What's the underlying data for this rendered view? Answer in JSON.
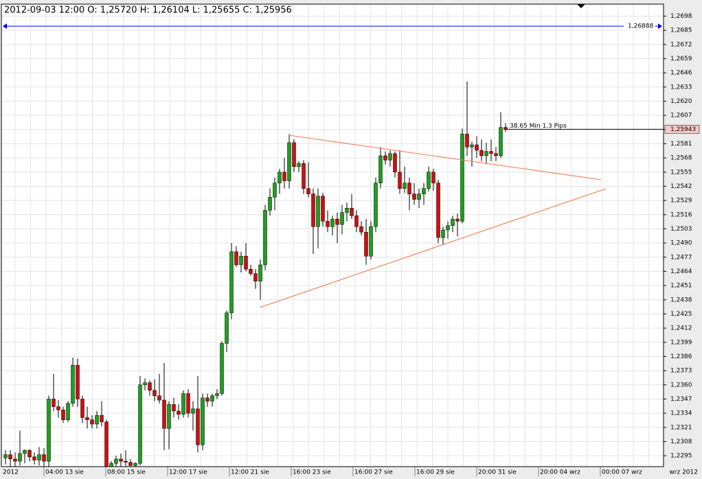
{
  "chart_data": {
    "type": "candlestick",
    "title": "2012-09-03 12:00 O: 1,25720 H: 1,26104 L: 1,25655 C: 1,25956",
    "up_color": "#1f9e1f",
    "down_color": "#cc1010",
    "ylim": [
      1.2285,
      1.2709
    ],
    "yticks": [
      {
        "value": 1.2295,
        "label": "1,2295"
      },
      {
        "value": 1.2308,
        "label": "1,2308"
      },
      {
        "value": 1.2321,
        "label": "1,2321"
      },
      {
        "value": 1.2334,
        "label": "1,2334"
      },
      {
        "value": 1.2347,
        "label": "1,2347"
      },
      {
        "value": 1.236,
        "label": "1,2360"
      },
      {
        "value": 1.2373,
        "label": "1,2373"
      },
      {
        "value": 1.2386,
        "label": "1,2386"
      },
      {
        "value": 1.2399,
        "label": "1,2399"
      },
      {
        "value": 1.2412,
        "label": "1,2412"
      },
      {
        "value": 1.2425,
        "label": "1,2425"
      },
      {
        "value": 1.2438,
        "label": "1,2438"
      },
      {
        "value": 1.2451,
        "label": "1,2451"
      },
      {
        "value": 1.2464,
        "label": "1,2464"
      },
      {
        "value": 1.2477,
        "label": "1,2477"
      },
      {
        "value": 1.249,
        "label": "1,2490"
      },
      {
        "value": 1.2503,
        "label": "1,2503"
      },
      {
        "value": 1.2516,
        "label": "1,2516"
      },
      {
        "value": 1.2529,
        "label": "1,2529"
      },
      {
        "value": 1.2542,
        "label": "1,2542"
      },
      {
        "value": 1.2555,
        "label": "1,2555"
      },
      {
        "value": 1.2568,
        "label": "1,2568"
      },
      {
        "value": 1.2581,
        "label": "1,2581"
      },
      {
        "value": 1.2594,
        "label": "1,2594"
      },
      {
        "value": 1.2607,
        "label": "1,2607"
      },
      {
        "value": 1.262,
        "label": "1,2620"
      },
      {
        "value": 1.2633,
        "label": "1,2633"
      },
      {
        "value": 1.2646,
        "label": "1,2646"
      },
      {
        "value": 1.2659,
        "label": "1,2659"
      },
      {
        "value": 1.2672,
        "label": "1,2672"
      },
      {
        "value": 1.2685,
        "label": "1,2685"
      },
      {
        "value": 1.2698,
        "label": "1,2698"
      }
    ],
    "grid": true,
    "x_start_label": "2012",
    "x_end_label": "wrz 2012",
    "x_labels": [
      "04:00 13 sie",
      "08:00 15 sie",
      "12:00 17 sie",
      "12:00 21 sie",
      "16:00 23 sie",
      "16:00 27 sie",
      "16:00 29 sie",
      "20:00 31 sie",
      "20:00 04 wrz",
      "00:00 07 wrz"
    ],
    "candles": [
      [
        1.2293,
        1.23,
        1.2287,
        1.2296
      ],
      [
        1.2296,
        1.23,
        1.2285,
        1.2292
      ],
      [
        1.2292,
        1.2298,
        1.2285,
        1.229
      ],
      [
        1.229,
        1.2318,
        1.2286,
        1.2297
      ],
      [
        1.2297,
        1.2301,
        1.2288,
        1.23
      ],
      [
        1.23,
        1.2301,
        1.229,
        1.2294
      ],
      [
        1.2294,
        1.2298,
        1.2287,
        1.2291
      ],
      [
        1.2291,
        1.2303,
        1.2286,
        1.2296
      ],
      [
        1.2296,
        1.2302,
        1.2285,
        1.229
      ],
      [
        1.229,
        1.235,
        1.2285,
        1.2347
      ],
      [
        1.2347,
        1.237,
        1.2336,
        1.234
      ],
      [
        1.234,
        1.2346,
        1.233,
        1.2337
      ],
      [
        1.2337,
        1.234,
        1.2325,
        1.2328
      ],
      [
        1.2328,
        1.2345,
        1.2326,
        1.2343
      ],
      [
        1.2343,
        1.2385,
        1.234,
        1.2378
      ],
      [
        1.2378,
        1.2384,
        1.234,
        1.2347
      ],
      [
        1.2347,
        1.235,
        1.2325,
        1.233
      ],
      [
        1.233,
        1.234,
        1.232,
        1.2328
      ],
      [
        1.2328,
        1.2332,
        1.232,
        1.2324
      ],
      [
        1.2324,
        1.2336,
        1.232,
        1.2332
      ],
      [
        1.2332,
        1.2345,
        1.2322,
        1.2326
      ],
      [
        1.2326,
        1.2328,
        1.228,
        1.2285
      ],
      [
        1.2285,
        1.229,
        1.228,
        1.2288
      ],
      [
        1.2288,
        1.2295,
        1.2282,
        1.2292
      ],
      [
        1.2292,
        1.2297,
        1.2285,
        1.229
      ],
      [
        1.229,
        1.23,
        1.2285,
        1.2289
      ],
      [
        1.2289,
        1.2292,
        1.2283,
        1.2286
      ],
      [
        1.2286,
        1.2289,
        1.2284,
        1.2288
      ],
      [
        1.2288,
        1.2368,
        1.2286,
        1.236
      ],
      [
        1.236,
        1.2366,
        1.2355,
        1.2362
      ],
      [
        1.2362,
        1.2364,
        1.235,
        1.2355
      ],
      [
        1.2355,
        1.2365,
        1.2345,
        1.235
      ],
      [
        1.235,
        1.237,
        1.2343,
        1.2346
      ],
      [
        1.2346,
        1.238,
        1.23,
        1.232
      ],
      [
        1.232,
        1.2345,
        1.2301,
        1.2342
      ],
      [
        1.2342,
        1.2348,
        1.233,
        1.2336
      ],
      [
        1.2336,
        1.2342,
        1.2328,
        1.2333
      ],
      [
        1.2333,
        1.2355,
        1.233,
        1.2352
      ],
      [
        1.2352,
        1.2356,
        1.233,
        1.2334
      ],
      [
        1.2334,
        1.2345,
        1.2318,
        1.2338
      ],
      [
        1.2338,
        1.2368,
        1.2298,
        1.2305
      ],
      [
        1.2305,
        1.2352,
        1.23,
        1.2348
      ],
      [
        1.2348,
        1.2352,
        1.234,
        1.2345
      ],
      [
        1.2345,
        1.2352,
        1.234,
        1.235
      ],
      [
        1.235,
        1.2356,
        1.2347,
        1.2352
      ],
      [
        1.2352,
        1.24,
        1.235,
        1.2398
      ],
      [
        1.2398,
        1.2428,
        1.239,
        1.2426
      ],
      [
        1.2426,
        1.249,
        1.242,
        1.2482
      ],
      [
        1.2482,
        1.2487,
        1.2468,
        1.247
      ],
      [
        1.247,
        1.2482,
        1.2463,
        1.2478
      ],
      [
        1.2478,
        1.249,
        1.2464,
        1.2466
      ],
      [
        1.2466,
        1.247,
        1.246,
        1.2462
      ],
      [
        1.2462,
        1.2466,
        1.2448,
        1.2455
      ],
      [
        1.2455,
        1.2475,
        1.2438,
        1.247
      ],
      [
        1.247,
        1.2525,
        1.2465,
        1.252
      ],
      [
        1.252,
        1.254,
        1.2515,
        1.2532
      ],
      [
        1.2532,
        1.255,
        1.252,
        1.2545
      ],
      [
        1.2545,
        1.2558,
        1.2535,
        1.2555
      ],
      [
        1.2555,
        1.2568,
        1.254,
        1.2547
      ],
      [
        1.2547,
        1.259,
        1.254,
        1.2582
      ],
      [
        1.2582,
        1.2585,
        1.2555,
        1.256
      ],
      [
        1.256,
        1.2565,
        1.2555,
        1.2563
      ],
      [
        1.2563,
        1.2566,
        1.2535,
        1.254
      ],
      [
        1.254,
        1.2564,
        1.2532,
        1.2535
      ],
      [
        1.2535,
        1.254,
        1.248,
        1.2505
      ],
      [
        1.2505,
        1.254,
        1.2485,
        1.2533
      ],
      [
        1.2533,
        1.2536,
        1.2505,
        1.251
      ],
      [
        1.251,
        1.252,
        1.25,
        1.2505
      ],
      [
        1.2505,
        1.2515,
        1.2497,
        1.2512
      ],
      [
        1.2512,
        1.2518,
        1.249,
        1.2507
      ],
      [
        1.2507,
        1.2525,
        1.2498,
        1.2518
      ],
      [
        1.2518,
        1.2527,
        1.251,
        1.2522
      ],
      [
        1.2522,
        1.2535,
        1.2512,
        1.2515
      ],
      [
        1.2515,
        1.252,
        1.25,
        1.2505
      ],
      [
        1.2505,
        1.251,
        1.2497,
        1.25
      ],
      [
        1.25,
        1.2512,
        1.247,
        1.2478
      ],
      [
        1.2478,
        1.251,
        1.2475,
        1.2505
      ],
      [
        1.2505,
        1.255,
        1.25,
        1.2545
      ],
      [
        1.2545,
        1.2578,
        1.254,
        1.257
      ],
      [
        1.257,
        1.2574,
        1.2562,
        1.2566
      ],
      [
        1.2566,
        1.2575,
        1.256,
        1.2572
      ],
      [
        1.2572,
        1.2574,
        1.255,
        1.2555
      ],
      [
        1.2555,
        1.2575,
        1.2535,
        1.254
      ],
      [
        1.254,
        1.256,
        1.2536,
        1.2545
      ],
      [
        1.2545,
        1.255,
        1.252,
        1.2535
      ],
      [
        1.2535,
        1.2545,
        1.2525,
        1.253
      ],
      [
        1.253,
        1.254,
        1.2522,
        1.2535
      ],
      [
        1.2535,
        1.2545,
        1.2525,
        1.254
      ],
      [
        1.254,
        1.256,
        1.2537,
        1.2555
      ],
      [
        1.2555,
        1.2558,
        1.2538,
        1.2545
      ],
      [
        1.2545,
        1.2548,
        1.249,
        1.2495
      ],
      [
        1.2495,
        1.2505,
        1.2488,
        1.2502
      ],
      [
        1.2502,
        1.251,
        1.2494,
        1.2506
      ],
      [
        1.2506,
        1.2515,
        1.25,
        1.2512
      ],
      [
        1.2512,
        1.2517,
        1.2496,
        1.251
      ],
      [
        1.251,
        1.2595,
        1.2508,
        1.259
      ],
      [
        1.259,
        1.2638,
        1.257,
        1.2578
      ],
      [
        1.2578,
        1.2583,
        1.256,
        1.258
      ],
      [
        1.258,
        1.2588,
        1.2568,
        1.2575
      ],
      [
        1.2575,
        1.2585,
        1.2565,
        1.257
      ],
      [
        1.257,
        1.2582,
        1.2562,
        1.2574
      ],
      [
        1.2574,
        1.2585,
        1.2565,
        1.2572
      ],
      [
        1.2572,
        1.2578,
        1.2565,
        1.257
      ],
      [
        1.257,
        1.261,
        1.2568,
        1.2596
      ],
      [
        1.2596,
        1.26,
        1.2592,
        1.2594
      ]
    ],
    "price_lines": [
      {
        "value": 1.26888,
        "label": "1,26888",
        "color": "#0000ff"
      },
      {
        "value": 1.25943,
        "label": "1,25943",
        "color": "#000000"
      }
    ],
    "annotation": "38.65 Min 1.3 Pips",
    "trendlines": [
      {
        "color": "#f4845f",
        "x": [
          58.9,
          123.9
        ],
        "y": [
          1.25888,
          1.2548
        ]
      },
      {
        "color": "#f4845f",
        "x": [
          52.9,
          124.9
        ],
        "y": [
          1.24309,
          1.25398
        ]
      }
    ]
  }
}
